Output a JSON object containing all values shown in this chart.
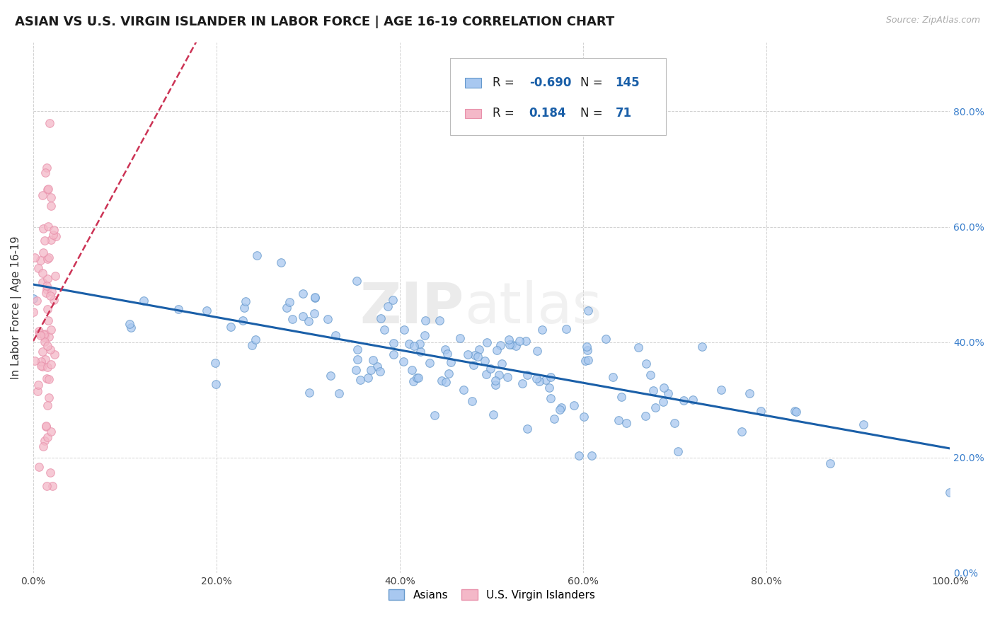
{
  "title": "ASIAN VS U.S. VIRGIN ISLANDER IN LABOR FORCE | AGE 16-19 CORRELATION CHART",
  "source": "Source: ZipAtlas.com",
  "ylabel": "In Labor Force | Age 16-19",
  "xlim": [
    0.0,
    1.0
  ],
  "ylim": [
    0.0,
    0.92
  ],
  "yticks": [
    0.0,
    0.2,
    0.4,
    0.6,
    0.8
  ],
  "ytick_labels": [
    "0.0%",
    "20.0%",
    "40.0%",
    "60.0%",
    "80.0%"
  ],
  "xticks": [
    0.0,
    0.2,
    0.4,
    0.6,
    0.8,
    1.0
  ],
  "xtick_labels": [
    "0.0%",
    "20.0%",
    "40.0%",
    "60.0%",
    "80.0%",
    "100.0%"
  ],
  "asian_color": "#a8c8f0",
  "asian_edge": "#6699cc",
  "vi_color": "#f4b8c8",
  "vi_edge": "#e890aa",
  "trendline_asian_color": "#1a5fa8",
  "trendline_vi_color": "#cc3355",
  "R_asian": -0.69,
  "N_asian": 145,
  "R_vi": 0.184,
  "N_vi": 71,
  "legend_text_color": "#1a5fa8",
  "watermark": "ZIPatlas",
  "background_color": "#ffffff",
  "grid_color": "#cccccc"
}
